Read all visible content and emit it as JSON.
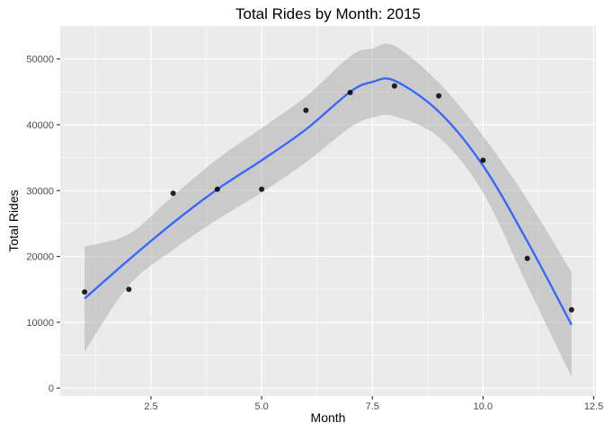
{
  "chart_data": {
    "type": "scatter",
    "title": "Total Rides by Month: 2015",
    "xlabel": "Month",
    "ylabel": "Total Rides",
    "xlim": [
      0.45,
      12.55
    ],
    "ylim": [
      -1200,
      55000
    ],
    "x_ticks": [
      {
        "value": 2.5,
        "label": "2.5"
      },
      {
        "value": 5.0,
        "label": "5.0"
      },
      {
        "value": 7.5,
        "label": "7.5"
      },
      {
        "value": 10.0,
        "label": "10.0"
      },
      {
        "value": 12.5,
        "label": "12.5"
      }
    ],
    "y_ticks": [
      {
        "value": 0,
        "label": "0"
      },
      {
        "value": 10000,
        "label": "10000"
      },
      {
        "value": 20000,
        "label": "20000"
      },
      {
        "value": 30000,
        "label": "30000"
      },
      {
        "value": 40000,
        "label": "40000"
      },
      {
        "value": 50000,
        "label": "50000"
      }
    ],
    "grid": true,
    "points": [
      {
        "x": 1,
        "y": 14600
      },
      {
        "x": 2,
        "y": 15000
      },
      {
        "x": 3,
        "y": 29600
      },
      {
        "x": 4,
        "y": 30200
      },
      {
        "x": 5,
        "y": 30200
      },
      {
        "x": 6,
        "y": 42200
      },
      {
        "x": 7,
        "y": 44900
      },
      {
        "x": 8,
        "y": 45900
      },
      {
        "x": 9,
        "y": 44400
      },
      {
        "x": 10,
        "y": 34600
      },
      {
        "x": 11,
        "y": 19700
      },
      {
        "x": 12,
        "y": 11900
      }
    ],
    "smooth": {
      "method": "loess",
      "x": [
        1,
        2,
        3,
        4,
        5,
        6,
        7,
        7.5,
        8,
        9,
        10,
        11,
        12
      ],
      "y": [
        13600,
        19500,
        25100,
        30200,
        34600,
        39300,
        45000,
        46500,
        46700,
        42000,
        33800,
        22300,
        9600
      ],
      "ci_lower": [
        5500,
        15600,
        21000,
        25600,
        29700,
        34300,
        39600,
        41100,
        41300,
        38100,
        29700,
        15600,
        1700
      ],
      "ci_upper": [
        21500,
        23400,
        29200,
        34800,
        39500,
        44300,
        50400,
        51600,
        52000,
        46400,
        38300,
        28600,
        17600
      ]
    },
    "colors": {
      "panel": "#ebebeb",
      "grid": "#ffffff",
      "point": "#000000",
      "line": "#3366ff",
      "ribbon": "#999999"
    }
  }
}
